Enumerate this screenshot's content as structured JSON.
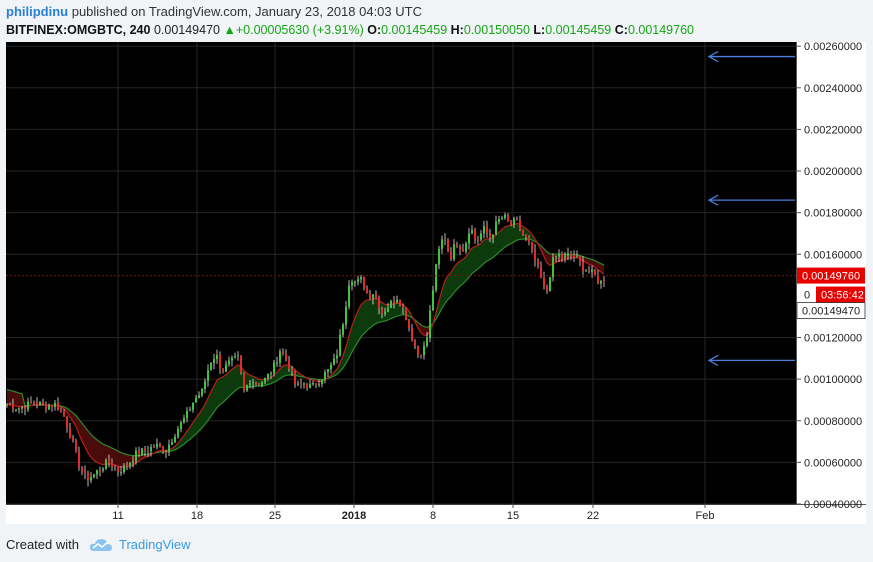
{
  "header": {
    "author": "philipdinu",
    "published_text": "published on TradingView.com, January 23, 2018 04:03 UTC",
    "symbol": "BITFINEX:OMGBTC, 240",
    "price": "0.00149470",
    "change": "+0.00005630 (+3.91%)",
    "open_label": "O:",
    "open": "0.00145459",
    "high_label": "H:",
    "high": "0.00150050",
    "low_label": "L:",
    "low": "0.00145459",
    "close_label": "C:",
    "close": "0.00149760"
  },
  "footer": {
    "created_with": "Created with",
    "brand": "TradingView"
  },
  "colors": {
    "background": "#000000",
    "bull_candle": "#3cc63c",
    "bear_candle": "#e12b2b",
    "wick": "#e8e8e8",
    "ema_fast": "#b81d1d",
    "ema_slow": "#2a8a2a",
    "arrow": "#4a7fe0",
    "price_badge": "#e60000"
  },
  "chart_data": {
    "type": "candlestick",
    "y_ticks": [
      "0.00260000",
      "0.00240000",
      "0.00220000",
      "0.00200000",
      "0.00180000",
      "0.00160000",
      "0.00120000",
      "0.00100000",
      "0.00080000",
      "0.00060000",
      "0.00040000"
    ],
    "x_ticks": [
      "11",
      "18",
      "25",
      "2018",
      "8",
      "15",
      "22",
      "Feb"
    ],
    "ylim": [
      0.0004,
      0.00262
    ],
    "last_price_badge": "0.00149760",
    "countdown_badge": "03:56:42",
    "bid_badge": "0.00149470",
    "partial_axis_label": "0",
    "arrows_at": [
      0.00255,
      0.00186,
      0.00109
    ],
    "price_path": [
      [
        0,
        0.00088
      ],
      [
        14,
        0.00086
      ],
      [
        28,
        0.00089
      ],
      [
        40,
        0.00087
      ],
      [
        50,
        0.00088
      ],
      [
        58,
        0.00082
      ],
      [
        65,
        0.00072
      ],
      [
        72,
        0.0006
      ],
      [
        80,
        0.00052
      ],
      [
        88,
        0.00054
      ],
      [
        96,
        0.00058
      ],
      [
        104,
        0.0006
      ],
      [
        112,
        0.00056
      ],
      [
        120,
        0.00058
      ],
      [
        130,
        0.00064
      ],
      [
        140,
        0.00066
      ],
      [
        150,
        0.00068
      ],
      [
        160,
        0.00066
      ],
      [
        170,
        0.00075
      ],
      [
        180,
        0.00082
      ],
      [
        188,
        0.0009
      ],
      [
        196,
        0.00094
      ],
      [
        204,
        0.00108
      ],
      [
        210,
        0.00112
      ],
      [
        216,
        0.00104
      ],
      [
        224,
        0.00108
      ],
      [
        232,
        0.0011
      ],
      [
        238,
        0.00094
      ],
      [
        244,
        0.001
      ],
      [
        252,
        0.00098
      ],
      [
        260,
        0.001
      ],
      [
        268,
        0.00106
      ],
      [
        274,
        0.00114
      ],
      [
        282,
        0.00108
      ],
      [
        290,
        0.00096
      ],
      [
        298,
        0.00098
      ],
      [
        306,
        0.00096
      ],
      [
        314,
        0.001
      ],
      [
        322,
        0.00104
      ],
      [
        330,
        0.0011
      ],
      [
        338,
        0.0013
      ],
      [
        344,
        0.0015
      ],
      [
        350,
        0.00146
      ],
      [
        356,
        0.00148
      ],
      [
        362,
        0.0014
      ],
      [
        368,
        0.00142
      ],
      [
        376,
        0.00132
      ],
      [
        384,
        0.00136
      ],
      [
        392,
        0.0014
      ],
      [
        400,
        0.0013
      ],
      [
        406,
        0.0012
      ],
      [
        412,
        0.00112
      ],
      [
        420,
        0.00116
      ],
      [
        426,
        0.0014
      ],
      [
        432,
        0.0016
      ],
      [
        438,
        0.0017
      ],
      [
        444,
        0.00158
      ],
      [
        450,
        0.00166
      ],
      [
        458,
        0.00162
      ],
      [
        464,
        0.00174
      ],
      [
        470,
        0.00166
      ],
      [
        478,
        0.00172
      ],
      [
        484,
        0.00168
      ],
      [
        492,
        0.00176
      ],
      [
        498,
        0.00178
      ],
      [
        504,
        0.00174
      ],
      [
        510,
        0.00176
      ],
      [
        516,
        0.0017
      ],
      [
        522,
        0.00166
      ],
      [
        528,
        0.00158
      ],
      [
        534,
        0.0015
      ],
      [
        540,
        0.0014
      ],
      [
        546,
        0.00156
      ],
      [
        552,
        0.0016
      ],
      [
        558,
        0.00158
      ],
      [
        564,
        0.0016
      ],
      [
        570,
        0.00158
      ],
      [
        576,
        0.00154
      ],
      [
        582,
        0.00152
      ],
      [
        588,
        0.0015
      ],
      [
        594,
        0.00146
      ],
      [
        600,
        0.00149
      ]
    ]
  }
}
